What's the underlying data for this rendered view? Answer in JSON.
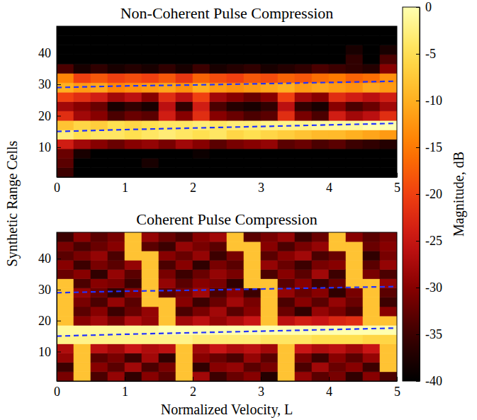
{
  "chart_data": [
    {
      "type": "heatmap",
      "title": "Non-Coherent Pulse Compression",
      "y_label": "Synthetic Range Cells",
      "xlim": [
        0,
        5
      ],
      "xticks": [
        0,
        1,
        2,
        3,
        4,
        5
      ],
      "ylim": [
        0.5,
        48.5
      ],
      "yticks": [
        10,
        20,
        30,
        40
      ],
      "x_bins": [
        0,
        0.25,
        0.5,
        0.75,
        1,
        1.25,
        1.5,
        1.75,
        2,
        2.25,
        2.5,
        2.75,
        3,
        3.25,
        3.5,
        3.75,
        4,
        4.25,
        4.5,
        4.75,
        5
      ],
      "y_bins": [
        0.5,
        3.5,
        6.5,
        9.5,
        12.5,
        15.5,
        18.5,
        21.5,
        24.5,
        27.5,
        30.5,
        33.5,
        36.5,
        39.5,
        42.5,
        45.5,
        48.5
      ],
      "cells": [
        [
          -35,
          -40,
          -40,
          -40,
          -40,
          -40,
          -40,
          -40,
          -40,
          -40,
          -40,
          -40,
          -40,
          -40,
          -40,
          -40,
          -40,
          -40,
          -40,
          -40
        ],
        [
          -33,
          -40,
          -40,
          -40,
          -40,
          -38,
          -40,
          -40,
          -40,
          -40,
          -40,
          -40,
          -40,
          -40,
          -40,
          -40,
          -40,
          -40,
          -40,
          -40
        ],
        [
          -32,
          -38,
          -40,
          -40,
          -40,
          -40,
          -40,
          -40,
          -39,
          -40,
          -40,
          -40,
          -40,
          -40,
          -40,
          -40,
          -40,
          -40,
          -40,
          -40
        ],
        [
          -24,
          -28,
          -30,
          -32,
          -30,
          -29,
          -31,
          -28,
          -30,
          -33,
          -31,
          -30,
          -29,
          -33,
          -32,
          -34,
          -33,
          -35,
          -36,
          -37
        ],
        [
          -3,
          -5,
          -4,
          -4,
          -5,
          -4,
          -3,
          -4,
          -5,
          -4,
          -6,
          -5,
          -6,
          -7,
          -8,
          -9,
          -9,
          -10,
          -11,
          -12
        ],
        [
          -8,
          -6,
          -7,
          -5,
          -6,
          -5,
          -4,
          -4,
          -3,
          -4,
          -3,
          -3,
          -2,
          -2,
          -2,
          -1,
          -1,
          -1,
          0,
          0
        ],
        [
          -22,
          -28,
          -30,
          -34,
          -32,
          -33,
          -24,
          -30,
          -22,
          -30,
          -32,
          -34,
          -33,
          -22,
          -31,
          -34,
          -24,
          -28,
          -26,
          -22
        ],
        [
          -28,
          -30,
          -32,
          -38,
          -36,
          -38,
          -26,
          -36,
          -24,
          -34,
          -37,
          -38,
          -36,
          -26,
          -36,
          -38,
          -30,
          -34,
          -32,
          -28
        ],
        [
          -20,
          -22,
          -24,
          -28,
          -26,
          -30,
          -22,
          -26,
          -20,
          -28,
          -30,
          -32,
          -30,
          -20,
          -28,
          -30,
          -22,
          -24,
          -26,
          -24
        ],
        [
          -10,
          -12,
          -11,
          -14,
          -13,
          -12,
          -11,
          -13,
          -10,
          -12,
          -13,
          -12,
          -11,
          -10,
          -12,
          -11,
          -12,
          -13,
          -11,
          -12
        ],
        [
          -14,
          -20,
          -18,
          -20,
          -19,
          -20,
          -18,
          -21,
          -17,
          -19,
          -20,
          -18,
          -19,
          -17,
          -18,
          -16,
          -15,
          -17,
          -16,
          -13
        ],
        [
          -34,
          -38,
          -36,
          -38,
          -37,
          -38,
          -36,
          -38,
          -35,
          -38,
          -37,
          -36,
          -38,
          -37,
          -36,
          -34,
          -35,
          -36,
          -37,
          -30
        ],
        [
          -40,
          -40,
          -40,
          -40,
          -40,
          -40,
          -40,
          -40,
          -40,
          -40,
          -40,
          -40,
          -40,
          -40,
          -40,
          -40,
          -40,
          -36,
          -40,
          -34
        ],
        [
          -40,
          -40,
          -40,
          -40,
          -40,
          -40,
          -40,
          -40,
          -40,
          -40,
          -40,
          -40,
          -40,
          -40,
          -40,
          -40,
          -40,
          -38,
          -40,
          -38
        ],
        [
          -40,
          -40,
          -40,
          -40,
          -40,
          -40,
          -40,
          -40,
          -40,
          -40,
          -40,
          -40,
          -40,
          -40,
          -40,
          -40,
          -40,
          -40,
          -40,
          -40
        ],
        [
          -40,
          -40,
          -40,
          -40,
          -40,
          -40,
          -40,
          -40,
          -40,
          -40,
          -40,
          -40,
          -40,
          -40,
          -40,
          -40,
          -40,
          -40,
          -40,
          -40
        ]
      ],
      "series": [
        {
          "x": [
            0,
            1,
            2,
            3,
            4,
            5
          ],
          "values": [
            29.0,
            29.5,
            29.8,
            30.2,
            30.6,
            31.0
          ],
          "color": "#2233ff",
          "line_style": "dashed"
        },
        {
          "x": [
            0,
            1,
            2,
            3,
            4,
            5
          ],
          "values": [
            15.0,
            15.6,
            16.1,
            16.6,
            17.1,
            17.6
          ],
          "color": "#2233ff",
          "line_style": "dashed"
        }
      ],
      "colorbar": {
        "label": "Magnitude, dB",
        "range": [
          -40,
          0
        ],
        "ticks": [
          0,
          -5,
          -10,
          -15,
          -20,
          -25,
          -30,
          -35,
          -40
        ]
      }
    },
    {
      "type": "heatmap",
      "title": "Coherent Pulse Compression",
      "x_label": "Normalized Velocity, L",
      "xlim": [
        0,
        5
      ],
      "xticks": [
        0,
        1,
        2,
        3,
        4,
        5
      ],
      "ylim": [
        0.5,
        48.5
      ],
      "yticks": [
        10,
        20,
        30,
        40
      ],
      "x_bins": [
        0,
        0.25,
        0.5,
        0.75,
        1,
        1.25,
        1.5,
        1.75,
        2,
        2.25,
        2.5,
        2.75,
        3,
        3.25,
        3.5,
        3.75,
        4,
        4.25,
        4.5,
        4.75,
        5
      ],
      "y_bins": [
        0.5,
        3.5,
        6.5,
        9.5,
        12.5,
        15.5,
        18.5,
        21.5,
        24.5,
        27.5,
        30.5,
        33.5,
        36.5,
        39.5,
        42.5,
        45.5,
        48.5
      ],
      "cells": [
        [
          -31,
          -8,
          -34,
          -29,
          -36,
          -30,
          -33,
          -8,
          -28,
          -35,
          -32,
          -30,
          -37,
          -8,
          -29,
          -33,
          -31,
          -36,
          -30,
          -34
        ],
        [
          -35,
          -8,
          -30,
          -33,
          -28,
          -34,
          -31,
          -8,
          -36,
          -30,
          -29,
          -33,
          -31,
          -8,
          -34,
          -28,
          -32,
          -30,
          -35,
          -8
        ],
        [
          -29,
          -8,
          -33,
          -31,
          -35,
          -28,
          -36,
          -8,
          -30,
          -32,
          -34,
          -29,
          -33,
          -8,
          -31,
          -35,
          -30,
          -33,
          -29,
          -8
        ],
        [
          -27,
          -8,
          -26,
          -28,
          -25,
          -27,
          -26,
          -8,
          -28,
          -25,
          -27,
          -26,
          -28,
          -8,
          -25,
          -27,
          -26,
          -28,
          -25,
          -8
        ],
        [
          -2,
          -2,
          -2,
          -2,
          -2,
          -2,
          -2,
          -2,
          -3,
          -3,
          -3,
          -3,
          -4,
          -4,
          -4,
          -5,
          -5,
          -5,
          -6,
          -6
        ],
        [
          -1,
          -1,
          -1,
          -1,
          -1,
          -1,
          0,
          0,
          0,
          0,
          0,
          0,
          0,
          0,
          0,
          0,
          0,
          0,
          0,
          0
        ],
        [
          -8,
          -30,
          -28,
          -31,
          -27,
          -29,
          -8,
          -28,
          -26,
          -29,
          -27,
          -25,
          -8,
          -26,
          -24,
          -25,
          -23,
          -22,
          -8,
          -8
        ],
        [
          -8,
          -33,
          -30,
          -35,
          -32,
          -29,
          -8,
          -34,
          -31,
          -28,
          -33,
          -30,
          -8,
          -32,
          -36,
          -29,
          -31,
          -34,
          -8,
          -30
        ],
        [
          -8,
          -31,
          -34,
          -29,
          -33,
          -8,
          -8,
          -30,
          -35,
          -32,
          -28,
          -31,
          -8,
          -34,
          -30,
          -33,
          -29,
          -32,
          -8,
          -35
        ],
        [
          -8,
          -29,
          -32,
          -36,
          -30,
          -8,
          -33,
          -31,
          -28,
          -34,
          -30,
          -35,
          -8,
          -29,
          -32,
          -30,
          -36,
          -31,
          -8,
          -33
        ],
        [
          -8,
          -34,
          -30,
          -31,
          -35,
          -8,
          -29,
          -33,
          -30,
          -31,
          -36,
          -8,
          -8,
          -33,
          -30,
          -35,
          -32,
          -8,
          -8,
          -29
        ],
        [
          -32,
          -30,
          -36,
          -29,
          -33,
          -8,
          -31,
          -35,
          -32,
          -29,
          -31,
          -8,
          -34,
          -30,
          -33,
          -28,
          -35,
          -8,
          -31,
          -34
        ],
        [
          -30,
          -35,
          -31,
          -33,
          -29,
          -8,
          -34,
          -30,
          -36,
          -31,
          -33,
          -8,
          -29,
          -32,
          -35,
          -31,
          -30,
          -8,
          -33,
          -29
        ],
        [
          -33,
          -31,
          -29,
          -34,
          -8,
          -8,
          -30,
          -32,
          -29,
          -35,
          -31,
          -8,
          -33,
          -30,
          -28,
          -34,
          -32,
          -8,
          -36,
          -31
        ],
        [
          -31,
          -34,
          -32,
          -30,
          -8,
          -33,
          -35,
          -29,
          -31,
          -33,
          -8,
          -8,
          -30,
          -34,
          -31,
          -29,
          -8,
          -8,
          -32,
          -30
        ],
        [
          -35,
          -30,
          -33,
          -31,
          -8,
          -29,
          -32,
          -34,
          -30,
          -28,
          -8,
          -33,
          -31,
          -29,
          -35,
          -32,
          -8,
          -30,
          -33,
          -31
        ]
      ],
      "series": [
        {
          "x": [
            0,
            1,
            2,
            3,
            4,
            5
          ],
          "values": [
            29.0,
            29.5,
            29.8,
            30.2,
            30.6,
            31.0
          ],
          "color": "#2233ff",
          "line_style": "dashed"
        },
        {
          "x": [
            0,
            1,
            2,
            3,
            4,
            5
          ],
          "values": [
            15.0,
            15.6,
            16.1,
            16.6,
            17.1,
            17.6
          ],
          "color": "#2233ff",
          "line_style": "dashed"
        }
      ]
    }
  ]
}
